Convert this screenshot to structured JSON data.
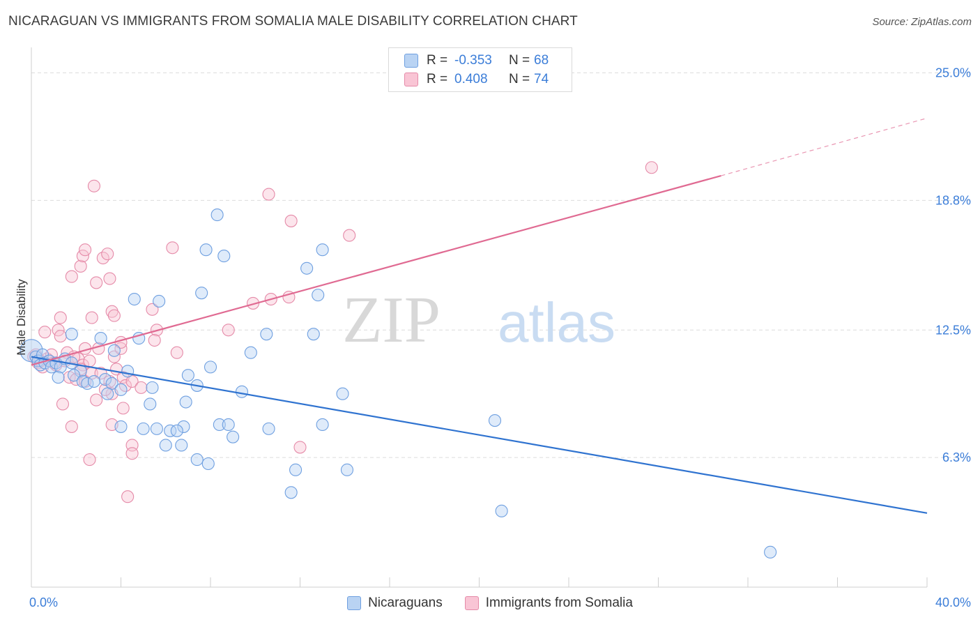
{
  "title": "NICARAGUAN VS IMMIGRANTS FROM SOMALIA MALE DISABILITY CORRELATION CHART",
  "source": "Source: ZipAtlas.com",
  "watermark": {
    "zip": "ZIP",
    "atlas": "atlas"
  },
  "legend_top": [
    {
      "r_label": "R =",
      "r_value": "-0.353",
      "n_label": "N =",
      "n_value": "68"
    },
    {
      "r_label": "R =",
      "r_value": "0.408",
      "n_label": "N =",
      "n_value": "74"
    }
  ],
  "legend_bottom": [
    "Nicaraguans",
    "Immigrants from Somalia"
  ],
  "colors": {
    "blue_fill": "#b9d3f3",
    "blue_stroke": "#6e9fe0",
    "blue_line": "#2f73d0",
    "pink_fill": "#f9c5d5",
    "pink_stroke": "#e58aa8",
    "pink_line": "#e06a92",
    "tick_label": "#3b7dd8",
    "grid": "#dcdcdc"
  },
  "chart_data": {
    "type": "scatter",
    "title": "NICARAGUAN VS IMMIGRANTS FROM SOMALIA MALE DISABILITY CORRELATION CHART",
    "xlabel": "",
    "ylabel": "Male Disability",
    "xlim": [
      0,
      40
    ],
    "ylim": [
      0,
      25.9
    ],
    "x_tick_labels": [
      "0.0%",
      "40.0%"
    ],
    "y_ticks": [
      6.3,
      12.5,
      18.8,
      25.0
    ],
    "y_tick_labels": [
      "6.3%",
      "12.5%",
      "18.8%",
      "25.0%"
    ],
    "grid": "horizontal dashed",
    "legend": "bottom-center",
    "series": [
      {
        "name": "Nicaraguans",
        "color": "blue",
        "r": -0.353,
        "n": 68,
        "trend": {
          "x": [
            0,
            40
          ],
          "y": [
            11.2,
            3.6
          ]
        },
        "points": [
          [
            0.0,
            11.5
          ],
          [
            0.2,
            11.2
          ],
          [
            0.3,
            11.0
          ],
          [
            0.4,
            10.8
          ],
          [
            0.5,
            11.3
          ],
          [
            0.6,
            10.9
          ],
          [
            0.8,
            11.0
          ],
          [
            0.9,
            10.7
          ],
          [
            1.1,
            10.9
          ],
          [
            1.3,
            10.7
          ],
          [
            1.5,
            11.1
          ],
          [
            1.8,
            10.9
          ],
          [
            2.2,
            10.5
          ],
          [
            1.2,
            10.2
          ],
          [
            1.9,
            10.3
          ],
          [
            2.3,
            10.0
          ],
          [
            2.5,
            9.9
          ],
          [
            1.8,
            12.3
          ],
          [
            3.1,
            12.1
          ],
          [
            3.7,
            11.5
          ],
          [
            3.3,
            10.1
          ],
          [
            3.6,
            9.9
          ],
          [
            4.0,
            9.6
          ],
          [
            4.3,
            10.5
          ],
          [
            3.4,
            9.4
          ],
          [
            4.0,
            7.8
          ],
          [
            4.8,
            12.1
          ],
          [
            5.4,
            9.7
          ],
          [
            5.3,
            8.9
          ],
          [
            5.0,
            7.7
          ],
          [
            5.6,
            7.7
          ],
          [
            5.7,
            13.9
          ],
          [
            6.2,
            7.6
          ],
          [
            6.8,
            7.8
          ],
          [
            6.7,
            6.9
          ],
          [
            6.0,
            6.9
          ],
          [
            6.5,
            7.6
          ],
          [
            6.9,
            9.0
          ],
          [
            7.4,
            9.8
          ],
          [
            7.0,
            10.3
          ],
          [
            7.6,
            14.3
          ],
          [
            7.4,
            6.2
          ],
          [
            7.9,
            6.0
          ],
          [
            8.0,
            10.7
          ],
          [
            8.4,
            7.9
          ],
          [
            8.8,
            7.9
          ],
          [
            9.0,
            7.3
          ],
          [
            9.4,
            9.5
          ],
          [
            9.8,
            11.4
          ],
          [
            10.5,
            12.3
          ],
          [
            10.6,
            7.7
          ],
          [
            11.8,
            5.7
          ],
          [
            11.6,
            4.6
          ],
          [
            12.3,
            15.5
          ],
          [
            12.6,
            12.3
          ],
          [
            13.0,
            16.4
          ],
          [
            13.0,
            7.9
          ],
          [
            12.8,
            14.2
          ],
          [
            13.9,
            9.4
          ],
          [
            14.1,
            5.7
          ],
          [
            4.6,
            14.0
          ],
          [
            7.8,
            16.4
          ],
          [
            8.3,
            18.1
          ],
          [
            8.6,
            16.1
          ],
          [
            20.7,
            8.1
          ],
          [
            21.0,
            3.7
          ],
          [
            33.0,
            1.7
          ],
          [
            2.8,
            10.0
          ]
        ]
      },
      {
        "name": "Immigrants from Somalia",
        "color": "pink",
        "r": 0.408,
        "n": 74,
        "trend": {
          "x": [
            0,
            30.8
          ],
          "y": [
            10.8,
            20.0
          ]
        },
        "trend_dashed": {
          "x": [
            30.8,
            40
          ],
          "y": [
            20.0,
            22.8
          ]
        },
        "points": [
          [
            0.1,
            11.2
          ],
          [
            0.3,
            10.9
          ],
          [
            0.5,
            10.7
          ],
          [
            0.7,
            11.1
          ],
          [
            0.9,
            11.3
          ],
          [
            1.1,
            10.8
          ],
          [
            0.6,
            12.4
          ],
          [
            1.2,
            12.5
          ],
          [
            1.3,
            13.1
          ],
          [
            1.3,
            12.2
          ],
          [
            1.6,
            11.4
          ],
          [
            1.7,
            10.2
          ],
          [
            2.1,
            11.1
          ],
          [
            2.3,
            10.8
          ],
          [
            2.4,
            11.6
          ],
          [
            2.0,
            10.1
          ],
          [
            2.4,
            10.0
          ],
          [
            2.6,
            11.0
          ],
          [
            2.7,
            10.4
          ],
          [
            1.4,
            8.9
          ],
          [
            1.8,
            7.8
          ],
          [
            1.8,
            15.1
          ],
          [
            2.2,
            15.6
          ],
          [
            2.3,
            16.1
          ],
          [
            2.4,
            16.4
          ],
          [
            2.7,
            13.1
          ],
          [
            2.9,
            14.8
          ],
          [
            3.0,
            11.6
          ],
          [
            3.1,
            10.4
          ],
          [
            2.9,
            9.1
          ],
          [
            3.2,
            16.0
          ],
          [
            3.4,
            16.2
          ],
          [
            3.5,
            15.0
          ],
          [
            3.6,
            13.4
          ],
          [
            3.7,
            13.2
          ],
          [
            3.7,
            11.2
          ],
          [
            3.5,
            10.0
          ],
          [
            3.6,
            9.4
          ],
          [
            3.8,
            10.6
          ],
          [
            4.0,
            11.6
          ],
          [
            4.1,
            10.2
          ],
          [
            4.2,
            9.8
          ],
          [
            4.1,
            8.7
          ],
          [
            3.6,
            7.9
          ],
          [
            4.0,
            11.9
          ],
          [
            4.5,
            10.0
          ],
          [
            4.9,
            9.7
          ],
          [
            5.4,
            13.5
          ],
          [
            5.6,
            12.5
          ],
          [
            5.5,
            12.0
          ],
          [
            6.3,
            16.5
          ],
          [
            6.5,
            11.4
          ],
          [
            4.3,
            4.4
          ],
          [
            4.5,
            6.9
          ],
          [
            4.5,
            6.5
          ],
          [
            2.6,
            6.2
          ],
          [
            2.8,
            19.5
          ],
          [
            8.8,
            12.5
          ],
          [
            9.9,
            13.8
          ],
          [
            10.6,
            19.1
          ],
          [
            10.7,
            14.0
          ],
          [
            11.5,
            14.1
          ],
          [
            11.6,
            17.8
          ],
          [
            12.0,
            6.8
          ],
          [
            14.2,
            17.1
          ],
          [
            27.7,
            20.4
          ],
          [
            0.4,
            11.0
          ],
          [
            0.8,
            11.0
          ],
          [
            1.0,
            10.9
          ],
          [
            1.5,
            11.0
          ],
          [
            1.9,
            11.2
          ],
          [
            2.2,
            10.6
          ],
          [
            0.2,
            11.3
          ],
          [
            3.3,
            9.6
          ]
        ]
      }
    ]
  }
}
